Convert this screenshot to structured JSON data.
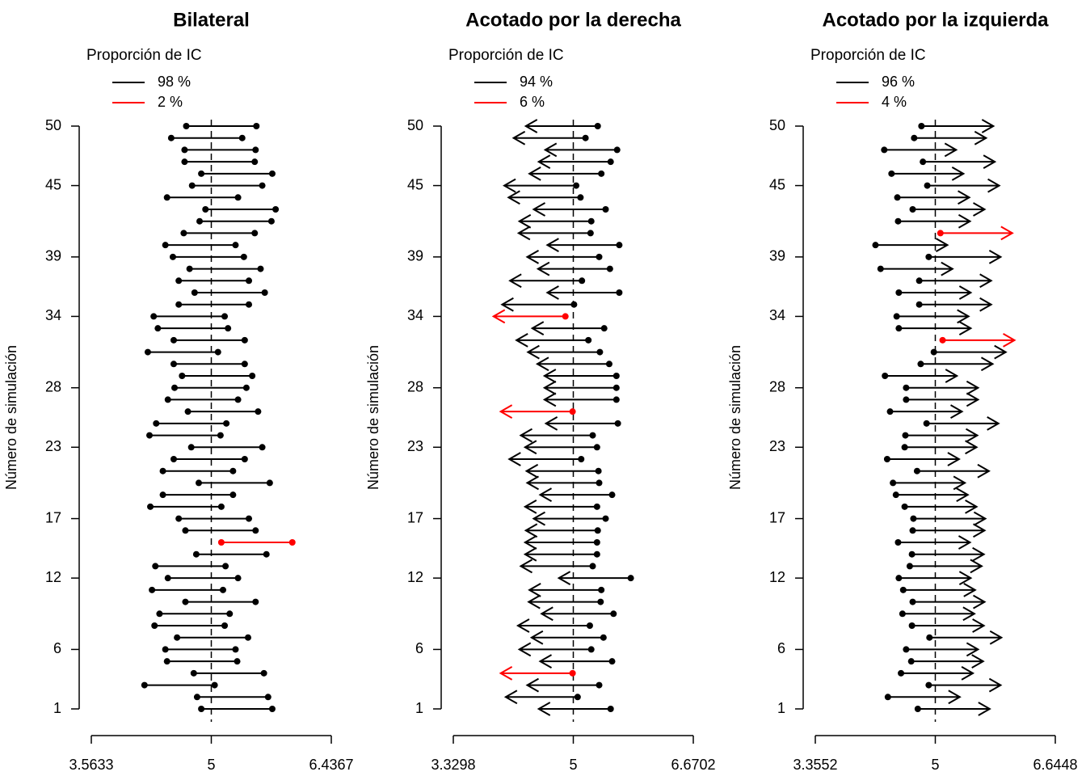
{
  "chart_data": [
    {
      "type": "interval",
      "title": "Bilateral",
      "ylabel": "Número de simulación",
      "legend_title": "Proporción de IC",
      "legend": [
        {
          "name": "98 %",
          "color": "#000000"
        },
        {
          "name": "2 %",
          "color": "#ff0000"
        }
      ],
      "hit_color": "#000000",
      "miss_color": "#ff0000",
      "reference": 5,
      "xlim": [
        3.5633,
        6.4367
      ],
      "xticks": [
        3.5633,
        5,
        6.4367
      ],
      "ylim": [
        1,
        50
      ],
      "yticks": [
        1,
        6,
        12,
        17,
        23,
        28,
        34,
        39,
        45,
        50
      ],
      "y": [
        1,
        2,
        3,
        4,
        5,
        6,
        7,
        8,
        9,
        10,
        11,
        12,
        13,
        14,
        15,
        16,
        17,
        18,
        19,
        20,
        21,
        22,
        23,
        24,
        25,
        26,
        27,
        28,
        29,
        30,
        31,
        32,
        33,
        34,
        35,
        36,
        37,
        38,
        39,
        40,
        41,
        42,
        43,
        44,
        45,
        46,
        47,
        48,
        49,
        50
      ],
      "lower": [
        4.88,
        4.83,
        4.2,
        4.79,
        4.47,
        4.45,
        4.59,
        4.32,
        4.38,
        4.69,
        4.29,
        4.48,
        4.33,
        4.82,
        5.12,
        4.69,
        4.61,
        4.27,
        4.42,
        4.85,
        4.42,
        4.55,
        4.76,
        4.26,
        4.34,
        4.72,
        4.48,
        4.56,
        4.65,
        4.55,
        4.24,
        4.55,
        4.36,
        4.31,
        4.61,
        4.8,
        4.61,
        4.74,
        4.54,
        4.45,
        4.67,
        4.86,
        4.93,
        4.47,
        4.77,
        4.88,
        4.68,
        4.68,
        4.52,
        4.7
      ],
      "upper": [
        5.73,
        5.68,
        5.04,
        5.63,
        5.31,
        5.29,
        5.44,
        5.16,
        5.22,
        5.53,
        5.14,
        5.32,
        5.17,
        5.66,
        5.97,
        5.53,
        5.45,
        5.12,
        5.26,
        5.7,
        5.26,
        5.4,
        5.61,
        5.11,
        5.18,
        5.56,
        5.32,
        5.42,
        5.49,
        5.4,
        5.08,
        5.4,
        5.2,
        5.16,
        5.45,
        5.64,
        5.45,
        5.59,
        5.39,
        5.29,
        5.52,
        5.72,
        5.77,
        5.32,
        5.61,
        5.73,
        5.52,
        5.53,
        5.37,
        5.54
      ]
    },
    {
      "type": "upper_bound",
      "title": "Acotado por la derecha",
      "ylabel": "Número de simulación",
      "legend_title": "Proporción de IC",
      "legend": [
        {
          "name": "94 %",
          "color": "#000000"
        },
        {
          "name": "6 %",
          "color": "#ff0000"
        }
      ],
      "hit_color": "#000000",
      "miss_color": "#ff0000",
      "reference": 5,
      "xlim": [
        3.3298,
        6.6702
      ],
      "xticks": [
        3.3298,
        5,
        6.6702
      ],
      "ylim": [
        1,
        50
      ],
      "yticks": [
        1,
        6,
        12,
        17,
        23,
        28,
        34,
        39,
        45,
        50
      ],
      "y": [
        1,
        2,
        3,
        4,
        5,
        6,
        7,
        8,
        9,
        10,
        11,
        12,
        13,
        14,
        15,
        16,
        17,
        18,
        19,
        20,
        21,
        22,
        23,
        24,
        25,
        26,
        27,
        28,
        29,
        30,
        31,
        32,
        33,
        34,
        35,
        36,
        37,
        38,
        39,
        40,
        41,
        42,
        43,
        44,
        45,
        46,
        47,
        48,
        49,
        50
      ],
      "upper": [
        5.52,
        5.06,
        5.36,
        4.99,
        5.54,
        5.25,
        5.42,
        5.23,
        5.56,
        5.38,
        5.39,
        5.8,
        5.27,
        5.33,
        5.33,
        5.34,
        5.45,
        5.33,
        5.54,
        5.36,
        5.35,
        5.11,
        5.33,
        5.27,
        5.62,
        4.99,
        5.6,
        5.6,
        5.6,
        5.5,
        5.37,
        5.21,
        5.43,
        4.89,
        5.01,
        5.64,
        5.12,
        5.51,
        5.36,
        5.64,
        5.24,
        5.25,
        5.45,
        5.1,
        5.04,
        5.39,
        5.52,
        5.61,
        5.17,
        5.34
      ]
    },
    {
      "type": "lower_bound",
      "title": "Acotado por la izquierda",
      "ylabel": "Número de simulación",
      "legend_title": "Proporción de IC",
      "legend": [
        {
          "name": "96 %",
          "color": "#000000"
        },
        {
          "name": "4 %",
          "color": "#ff0000"
        }
      ],
      "hit_color": "#000000",
      "miss_color": "#ff0000",
      "reference": 5,
      "xlim": [
        3.3552,
        6.6448
      ],
      "xticks": [
        3.3552,
        5,
        6.6448
      ],
      "ylim": [
        1,
        50
      ],
      "yticks": [
        1,
        6,
        12,
        17,
        23,
        28,
        34,
        39,
        45,
        50
      ],
      "y": [
        1,
        2,
        3,
        4,
        5,
        6,
        7,
        8,
        9,
        10,
        11,
        12,
        13,
        14,
        15,
        16,
        17,
        18,
        19,
        20,
        21,
        22,
        23,
        24,
        25,
        26,
        27,
        28,
        29,
        30,
        31,
        32,
        33,
        34,
        35,
        36,
        37,
        38,
        39,
        40,
        41,
        42,
        43,
        44,
        45,
        46,
        47,
        48,
        49,
        50
      ],
      "lower": [
        4.76,
        4.35,
        4.91,
        4.53,
        4.67,
        4.6,
        4.92,
        4.68,
        4.55,
        4.69,
        4.56,
        4.5,
        4.65,
        4.68,
        4.49,
        4.69,
        4.7,
        4.58,
        4.46,
        4.42,
        4.75,
        4.34,
        4.58,
        4.59,
        4.88,
        4.38,
        4.6,
        4.6,
        4.31,
        4.8,
        4.98,
        5.1,
        4.5,
        4.47,
        4.78,
        4.5,
        4.78,
        4.25,
        4.91,
        4.18,
        5.07,
        4.49,
        4.69,
        4.48,
        4.89,
        4.4,
        4.83,
        4.3,
        4.71,
        4.81
      ]
    }
  ]
}
